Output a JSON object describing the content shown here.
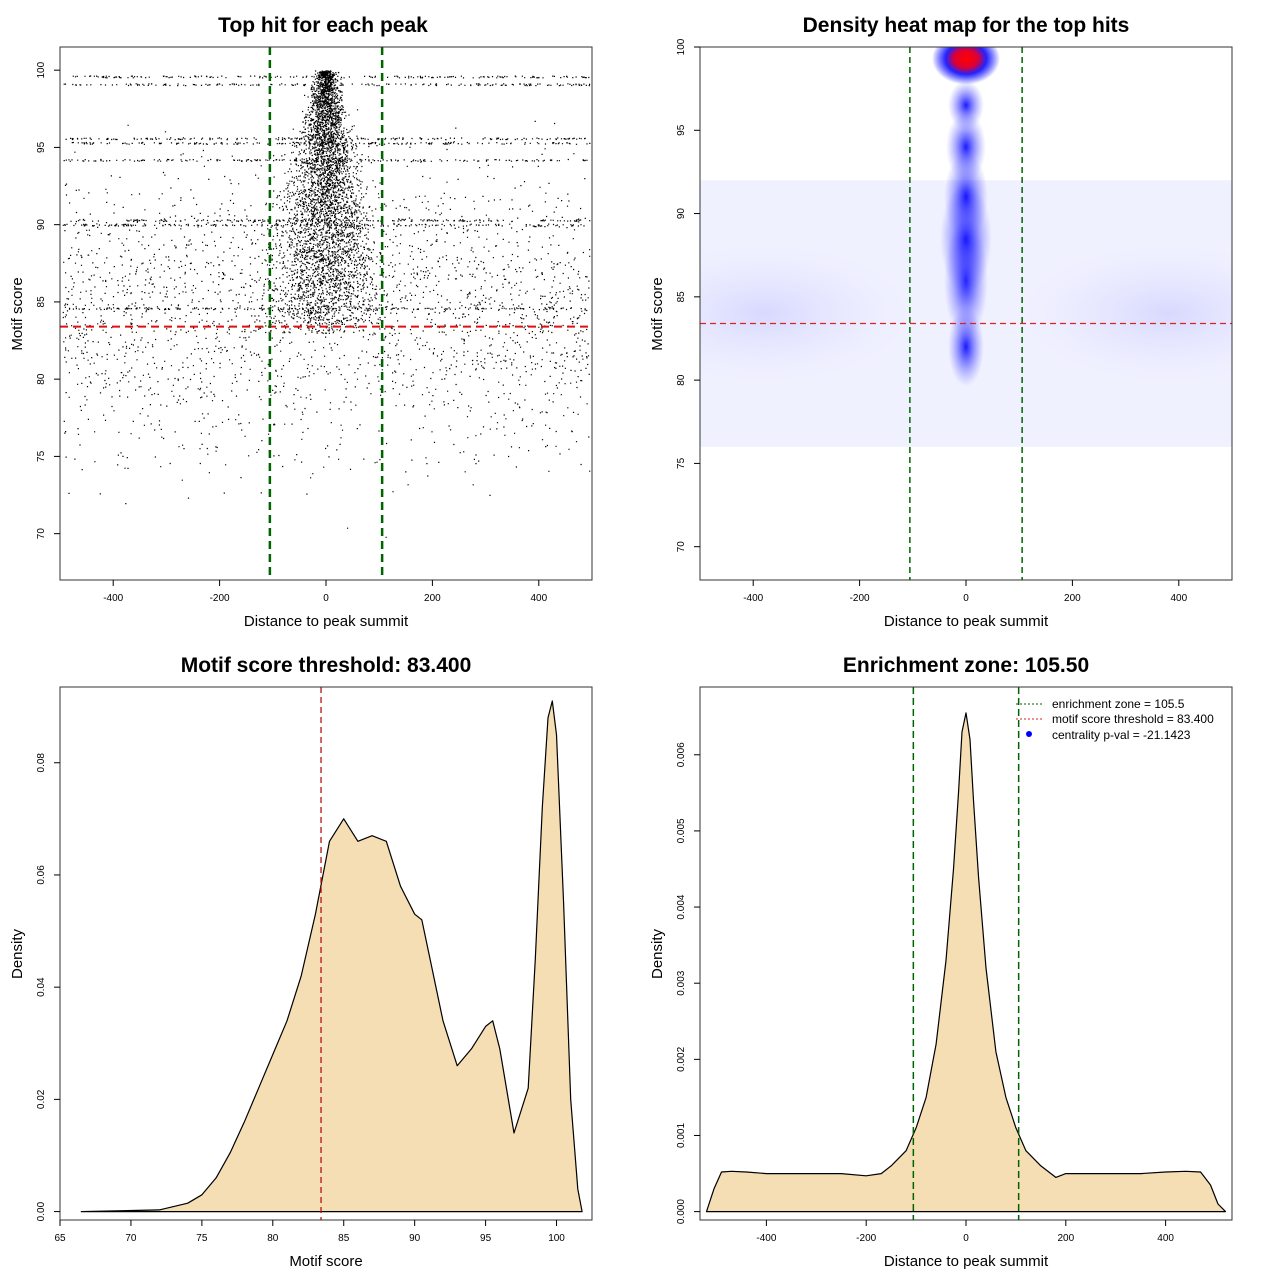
{
  "chart_data": [
    {
      "type": "scatter",
      "title": "Top hit for each peak",
      "xlabel": "Distance to peak summit",
      "ylabel": "Motif score",
      "xlim": [
        -500,
        500
      ],
      "ylim": [
        67,
        101.5
      ],
      "x_ticks": [
        -400,
        -200,
        0,
        200,
        400
      ],
      "y_ticks": [
        70,
        75,
        80,
        85,
        90,
        95,
        100
      ],
      "reference_lines": {
        "vertical": [
          -105.5,
          105.5
        ],
        "horizontal": [
          83.4
        ]
      },
      "point_summary": {
        "x_range": [
          -495,
          495
        ],
        "y_range": [
          68,
          100
        ],
        "central_cluster_x": 0,
        "horizontal_bands_y": [
          99.6,
          99.1,
          95.6,
          95.3,
          94.2,
          90.3,
          90.0,
          84.6
        ]
      },
      "colors": {
        "points": "#000000",
        "vlines": "#006400",
        "hline": "#dd1111"
      }
    },
    {
      "type": "heatmap",
      "title": "Density heat map for the top hits",
      "xlabel": "Distance to peak summit",
      "ylabel": "Motif score",
      "xlim": [
        -500,
        500
      ],
      "ylim": [
        68,
        100
      ],
      "x_ticks": [
        -400,
        -200,
        0,
        200,
        400
      ],
      "y_ticks": [
        70,
        75,
        80,
        85,
        90,
        95,
        100
      ],
      "reference_lines": {
        "vertical": [
          -105.5,
          105.5
        ],
        "horizontal": [
          83.4
        ]
      },
      "density_peak": {
        "x": 0,
        "y": 99.3
      },
      "colors": {
        "low": "#ffffff",
        "mid": "#0000ff",
        "high": "#ff0000",
        "vlines": "#006400",
        "hline": "#dd2222"
      }
    },
    {
      "type": "area",
      "title": "Motif score threshold: 83.400",
      "xlabel": "Motif score",
      "ylabel": "Density",
      "xlim": [
        65,
        102.5
      ],
      "ylim": [
        -0.0015,
        0.0935
      ],
      "x_ticks": [
        65,
        70,
        75,
        80,
        85,
        90,
        95,
        100
      ],
      "y_ticks": [
        0.0,
        0.02,
        0.04,
        0.06,
        0.08
      ],
      "y_tick_labels": [
        "0.00",
        "0.02",
        "0.04",
        "0.06",
        "0.08"
      ],
      "reference_lines": {
        "vertical": [
          83.4
        ]
      },
      "x": [
        66.5,
        72,
        74,
        75,
        76,
        77,
        78,
        79,
        80,
        81,
        82,
        83,
        84,
        85,
        86,
        87,
        88,
        89,
        90,
        90.5,
        91,
        92,
        93,
        94,
        95,
        95.5,
        96,
        97,
        98,
        98.5,
        99,
        99.4,
        99.7,
        100,
        100.5,
        101,
        101.5,
        101.8
      ],
      "y": [
        0.0,
        0.0003,
        0.0015,
        0.003,
        0.006,
        0.0105,
        0.016,
        0.022,
        0.028,
        0.034,
        0.042,
        0.053,
        0.066,
        0.07,
        0.066,
        0.067,
        0.066,
        0.058,
        0.053,
        0.052,
        0.046,
        0.034,
        0.026,
        0.029,
        0.033,
        0.034,
        0.029,
        0.014,
        0.022,
        0.045,
        0.072,
        0.088,
        0.091,
        0.085,
        0.055,
        0.02,
        0.004,
        0.0
      ],
      "colors": {
        "fill": "#f5deb3",
        "line": "#000000",
        "vline": "#bb1111"
      }
    },
    {
      "type": "area",
      "title": "Enrichment zone: 105.50",
      "xlabel": "Distance to peak summit",
      "ylabel": "Density",
      "xlim": [
        -533,
        533
      ],
      "ylim": [
        -0.00011,
        0.00689
      ],
      "x_ticks": [
        -400,
        -200,
        0,
        200,
        400
      ],
      "y_ticks": [
        0.0,
        0.001,
        0.002,
        0.003,
        0.004,
        0.005,
        0.006
      ],
      "y_tick_labels": [
        "0.000",
        "0.001",
        "0.002",
        "0.003",
        "0.004",
        "0.005",
        "0.006"
      ],
      "reference_lines": {
        "vertical": [
          -105.5,
          105.5
        ]
      },
      "x": [
        -520,
        -505,
        -490,
        -470,
        -440,
        -400,
        -350,
        -300,
        -250,
        -200,
        -170,
        -150,
        -120,
        -100,
        -80,
        -60,
        -40,
        -25,
        -15,
        -8,
        0,
        8,
        15,
        25,
        40,
        60,
        80,
        100,
        120,
        150,
        180,
        200,
        250,
        300,
        350,
        400,
        440,
        470,
        490,
        505,
        520
      ],
      "y": [
        0.0,
        0.0003,
        0.00052,
        0.00053,
        0.00052,
        0.0005,
        0.0005,
        0.0005,
        0.0005,
        0.00047,
        0.0005,
        0.0006,
        0.0008,
        0.0011,
        0.0015,
        0.0022,
        0.0033,
        0.0045,
        0.0055,
        0.0063,
        0.00655,
        0.0062,
        0.0054,
        0.0044,
        0.0032,
        0.0021,
        0.0015,
        0.0011,
        0.0008,
        0.0006,
        0.00045,
        0.0005,
        0.0005,
        0.0005,
        0.0005,
        0.00052,
        0.00053,
        0.00052,
        0.00035,
        0.0001,
        0.0
      ],
      "colors": {
        "fill": "#f5deb3",
        "line": "#000000",
        "vline": "#006400"
      },
      "legend": {
        "placement": "top-right",
        "entries": [
          {
            "label": "enrichment zone = 105.5",
            "symbol": "dotted-line",
            "color": "#006400"
          },
          {
            "label": "motif score threshold = 83.400",
            "symbol": "dotted-line",
            "color": "#dd2222"
          },
          {
            "label": "centrality p-val = -21.1423",
            "symbol": "dot",
            "color": "#0000ff"
          }
        ]
      }
    }
  ]
}
